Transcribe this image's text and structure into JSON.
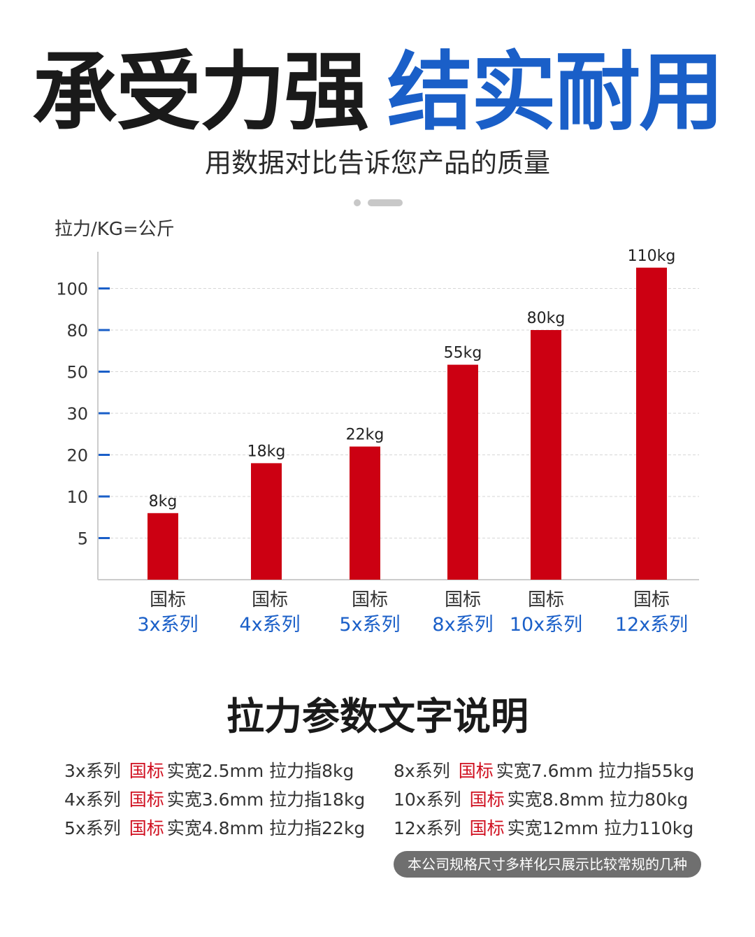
{
  "header": {
    "title_black": "承受力强",
    "title_blue": "结实耐用",
    "subtitle": "用数据对比告诉您产品的质量"
  },
  "chart_data": {
    "type": "bar",
    "ylabel": "拉力/KG=公斤",
    "ytick_labels": [
      "5",
      "10",
      "20",
      "30",
      "50",
      "80",
      "100"
    ],
    "categories": [
      {
        "line1": "国标",
        "line2": "3x系列"
      },
      {
        "line1": "国标",
        "line2": "4x系列"
      },
      {
        "line1": "国标",
        "line2": "5x系列"
      },
      {
        "line1": "国标",
        "line2": "8x系列"
      },
      {
        "line1": "国标",
        "line2": "10x系列"
      },
      {
        "line1": "国标",
        "line2": "12x系列"
      }
    ],
    "values": [
      8,
      18,
      22,
      55,
      80,
      110
    ],
    "data_labels": [
      "8kg",
      "18kg",
      "22kg",
      "55kg",
      "80kg",
      "110kg"
    ],
    "grid": true,
    "colors": {
      "bar": "#cc0012",
      "category_series": "#1a5fc8",
      "axis_tick": "#1a5fc8",
      "axis": "#cccccc"
    }
  },
  "spec": {
    "title": "拉力参数文字说明",
    "left": [
      {
        "series": "3x系列",
        "std": "国标",
        "detail": "实宽2.5mm  拉力指8kg"
      },
      {
        "series": "4x系列",
        "std": "国标",
        "detail": "实宽3.6mm  拉力指18kg"
      },
      {
        "series": "5x系列",
        "std": "国标",
        "detail": "实宽4.8mm  拉力指22kg"
      }
    ],
    "right": [
      {
        "series": "8x系列",
        "std": "国标",
        "detail": "实宽7.6mm  拉力指55kg"
      },
      {
        "series": "10x系列",
        "std": "国标",
        "detail": "实宽8.8mm  拉力80kg"
      },
      {
        "series": "12x系列",
        "std": "国标",
        "detail": "实宽12mm  拉力110kg"
      }
    ],
    "note": "本公司规格尺寸多样化只展示比较常规的几种"
  }
}
